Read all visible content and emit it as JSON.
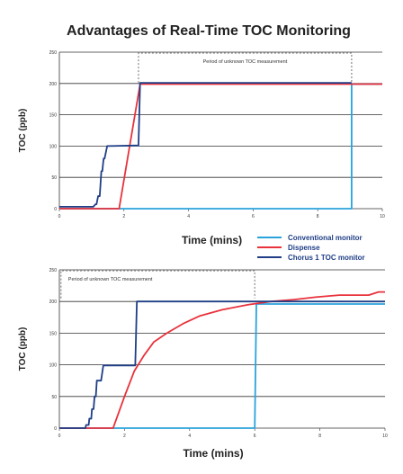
{
  "title": "Advantages of Real-Time TOC Monitoring",
  "legend": [
    {
      "label": "Conventional monitor",
      "color": "#2aa3dc"
    },
    {
      "label": "Dispense",
      "color": "#e8323c"
    },
    {
      "label": "Chorus 1 TOC monitor",
      "color": "#1f3e86"
    }
  ],
  "chart_data": [
    {
      "type": "line",
      "xlabel": "Time (mins)",
      "ylabel": "TOC (ppb)",
      "xlim": [
        0,
        10
      ],
      "ylim": [
        0,
        250
      ],
      "xticks": [
        "0",
        "2",
        "4",
        "6",
        "8",
        "10"
      ],
      "yticks": [
        "0",
        "50",
        "100",
        "150",
        "200",
        "250"
      ],
      "grid": "horizontal",
      "annotation": {
        "text": "Period of unknown TOC measurement",
        "x_range": [
          2.45,
          9.05
        ],
        "y": 250
      },
      "series": [
        {
          "name": "Conventional monitor",
          "color": "#2aa3dc",
          "points": [
            [
              0,
              0
            ],
            [
              9.05,
              0
            ],
            [
              9.05,
              199
            ],
            [
              10,
              199
            ]
          ]
        },
        {
          "name": "Dispense",
          "color": "#e8323c",
          "points": [
            [
              0,
              0
            ],
            [
              1.85,
              0
            ],
            [
              2.5,
              199
            ],
            [
              10,
              199
            ]
          ]
        },
        {
          "name": "Chorus 1 TOC monitor",
          "color": "#1f3e86",
          "points": [
            [
              0,
              3
            ],
            [
              1.05,
              3
            ],
            [
              1.12,
              7
            ],
            [
              1.15,
              7
            ],
            [
              1.2,
              20
            ],
            [
              1.25,
              20
            ],
            [
              1.3,
              60
            ],
            [
              1.33,
              60
            ],
            [
              1.37,
              80
            ],
            [
              1.4,
              80
            ],
            [
              1.48,
              100
            ],
            [
              2.45,
              101
            ],
            [
              2.5,
              201
            ],
            [
              9.05,
              201
            ]
          ]
        }
      ]
    },
    {
      "type": "line",
      "xlabel": "Time (mins)",
      "ylabel": "TOC (ppb)",
      "xlim": [
        0,
        10
      ],
      "ylim": [
        0,
        250
      ],
      "xticks": [
        "0",
        "2",
        "4",
        "6",
        "8",
        "10"
      ],
      "yticks": [
        "0",
        "50",
        "100",
        "150",
        "200",
        "250"
      ],
      "grid": "horizontal",
      "annotation": {
        "text": "Period of unknown TOC measurement",
        "x_range": [
          0.05,
          6.0
        ],
        "y": 250
      },
      "series": [
        {
          "name": "Conventional monitor",
          "color": "#2aa3dc",
          "points": [
            [
              0,
              0
            ],
            [
              6.0,
              0
            ],
            [
              6.05,
              196
            ],
            [
              10,
              196
            ]
          ]
        },
        {
          "name": "Dispense",
          "color": "#e8323c",
          "points": [
            [
              0,
              0
            ],
            [
              1.65,
              0
            ],
            [
              2.0,
              50
            ],
            [
              2.3,
              90
            ],
            [
              2.6,
              115
            ],
            [
              2.9,
              136
            ],
            [
              3.3,
              150
            ],
            [
              3.8,
              165
            ],
            [
              4.3,
              177
            ],
            [
              5.0,
              187
            ],
            [
              5.8,
              195
            ],
            [
              6.5,
              200
            ],
            [
              7.2,
              203
            ],
            [
              7.9,
              207
            ],
            [
              8.6,
              210
            ],
            [
              9.5,
              210
            ],
            [
              9.8,
              215
            ],
            [
              10,
              215
            ]
          ]
        },
        {
          "name": "Chorus 1 TOC monitor",
          "color": "#1f3e86",
          "points": [
            [
              0,
              0
            ],
            [
              0.8,
              0
            ],
            [
              0.82,
              5
            ],
            [
              0.9,
              5
            ],
            [
              0.92,
              15
            ],
            [
              0.98,
              15
            ],
            [
              1.0,
              30
            ],
            [
              1.05,
              30
            ],
            [
              1.08,
              50
            ],
            [
              1.12,
              50
            ],
            [
              1.15,
              75
            ],
            [
              1.28,
              75
            ],
            [
              1.35,
              99
            ],
            [
              2.33,
              99
            ],
            [
              2.38,
              200
            ],
            [
              10,
              200
            ]
          ]
        }
      ]
    }
  ]
}
